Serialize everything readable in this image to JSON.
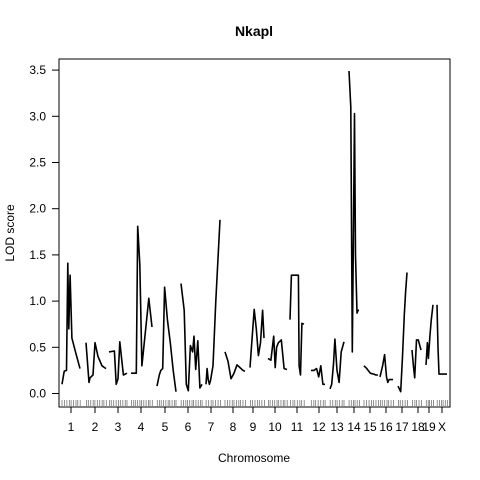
{
  "chart_data": {
    "type": "line",
    "title": "Nkapl",
    "xlabel": "Chromosome",
    "ylabel": "LOD score",
    "ylim": [
      0,
      3.5
    ],
    "yticks": [
      0.0,
      0.5,
      1.0,
      1.5,
      2.0,
      2.5,
      3.0,
      3.5
    ],
    "ytick_labels": [
      "0.0",
      "0.5",
      "1.0",
      "1.5",
      "2.0",
      "2.5",
      "3.0",
      "3.5"
    ],
    "chromosomes": [
      {
        "label": "1",
        "show_label": true,
        "x": [
          0.0,
          0.12,
          0.25,
          0.32,
          0.38,
          0.45,
          0.55,
          0.75,
          1.0
        ],
        "y": [
          0.1,
          0.24,
          0.25,
          1.41,
          0.7,
          1.28,
          0.6,
          0.45,
          0.27
        ]
      },
      {
        "label": "2",
        "show_label": true,
        "x": [
          0.0,
          0.15,
          0.2,
          0.35,
          0.45,
          0.6,
          0.8,
          1.0
        ],
        "y": [
          0.55,
          0.12,
          0.17,
          0.2,
          0.55,
          0.4,
          0.3,
          0.27
        ]
      },
      {
        "label": "3",
        "show_label": true,
        "x": [
          0.0,
          0.3,
          0.4,
          0.5,
          0.6,
          0.7,
          0.8,
          1.0
        ],
        "y": [
          0.45,
          0.46,
          0.1,
          0.16,
          0.56,
          0.38,
          0.2,
          0.22
        ]
      },
      {
        "label": "4",
        "show_label": true,
        "x": [
          0.0,
          0.25,
          0.32,
          0.42,
          0.52,
          0.7,
          0.85,
          1.0
        ],
        "y": [
          0.22,
          0.22,
          1.81,
          1.4,
          0.3,
          0.7,
          1.03,
          0.72
        ]
      },
      {
        "label": "5",
        "show_label": true,
        "x": [
          0.0,
          0.12,
          0.2,
          0.3,
          0.4,
          0.55,
          0.7,
          0.85,
          1.0
        ],
        "y": [
          0.08,
          0.2,
          0.25,
          0.27,
          1.15,
          0.8,
          0.55,
          0.25,
          0.02
        ]
      },
      {
        "label": "6",
        "show_label": true,
        "x": [
          0.0,
          0.15,
          0.25,
          0.35,
          0.45,
          0.55,
          0.62,
          0.7,
          0.8,
          0.9,
          1.0
        ],
        "y": [
          1.19,
          0.9,
          0.1,
          0.03,
          0.52,
          0.45,
          0.62,
          0.26,
          0.57,
          0.06,
          0.1
        ]
      },
      {
        "label": "7",
        "show_label": true,
        "x": [
          0.0,
          0.08,
          0.16,
          0.24,
          0.32,
          0.5,
          0.7,
          1.0
        ],
        "y": [
          0.1,
          0.27,
          0.15,
          0.1,
          0.14,
          0.3,
          1.0,
          1.88
        ]
      },
      {
        "label": "8",
        "show_label": true,
        "x": [
          0.0,
          0.15,
          0.3,
          0.45,
          0.6,
          0.75,
          0.9,
          1.0
        ],
        "y": [
          0.45,
          0.35,
          0.16,
          0.22,
          0.31,
          0.28,
          0.25,
          0.24
        ]
      },
      {
        "label": "9",
        "show_label": true,
        "x": [
          0.0,
          0.15,
          0.3,
          0.45,
          0.6,
          0.75,
          0.9,
          1.0
        ],
        "y": [
          0.28,
          0.6,
          0.91,
          0.7,
          0.41,
          0.55,
          0.9,
          0.6
        ]
      },
      {
        "label": "10",
        "show_label": true,
        "x": [
          0.0,
          0.15,
          0.3,
          0.38,
          0.45,
          0.55,
          0.7,
          0.85,
          1.0
        ],
        "y": [
          0.38,
          0.36,
          0.62,
          0.28,
          0.5,
          0.55,
          0.58,
          0.27,
          0.26
        ]
      },
      {
        "label": "11",
        "show_label": true,
        "x": [
          0.0,
          0.1,
          0.2,
          0.4,
          0.6,
          0.65,
          0.75,
          0.85,
          1.0
        ],
        "y": [
          0.8,
          1.28,
          1.28,
          1.28,
          1.28,
          0.3,
          0.2,
          0.76,
          0.75
        ]
      },
      {
        "label": "12",
        "show_label": true,
        "x": [
          0.0,
          0.2,
          0.4,
          0.55,
          0.7,
          0.85,
          1.0
        ],
        "y": [
          0.25,
          0.25,
          0.27,
          0.18,
          0.3,
          0.1,
          0.1
        ]
      },
      {
        "label": "13",
        "show_label": true,
        "x": [
          0.0,
          0.12,
          0.25,
          0.35,
          0.5,
          0.65,
          0.8,
          1.0
        ],
        "y": [
          0.05,
          0.1,
          0.32,
          0.59,
          0.25,
          0.12,
          0.45,
          0.56
        ]
      },
      {
        "label": "14",
        "show_label": true,
        "x": [
          0.0,
          0.18,
          0.33,
          0.45,
          0.55,
          0.65,
          0.8,
          0.9,
          1.0
        ],
        "y": [
          3.49,
          3.1,
          0.45,
          1.8,
          3.03,
          1.5,
          0.87,
          0.9,
          0.9
        ]
      },
      {
        "label": "15",
        "show_label": true,
        "x": [
          0.0,
          0.2,
          0.45,
          0.7,
          0.85,
          1.0
        ],
        "y": [
          0.3,
          0.27,
          0.22,
          0.21,
          0.2,
          0.2
        ]
      },
      {
        "label": "16",
        "show_label": true,
        "x": [
          0.0,
          0.2,
          0.35,
          0.5,
          0.6,
          0.7,
          0.85,
          1.0
        ],
        "y": [
          0.18,
          0.3,
          0.42,
          0.18,
          0.12,
          0.15,
          0.15,
          0.15
        ]
      },
      {
        "label": "17",
        "show_label": true,
        "x": [
          0.0,
          0.15,
          0.3,
          0.5,
          0.7,
          0.85,
          1.0
        ],
        "y": [
          0.08,
          0.05,
          0.02,
          0.4,
          0.85,
          1.1,
          1.31
        ]
      },
      {
        "label": "18",
        "show_label": true,
        "x": [
          0.0,
          0.15,
          0.3,
          0.5,
          0.7,
          1.0
        ],
        "y": [
          0.47,
          0.3,
          0.17,
          0.58,
          0.58,
          0.47
        ]
      },
      {
        "label": "19",
        "show_label": true,
        "x": [
          0.0,
          0.2,
          0.35,
          0.55,
          0.75,
          1.0
        ],
        "y": [
          0.31,
          0.55,
          0.38,
          0.62,
          0.8,
          0.96
        ]
      },
      {
        "label": "X",
        "show_label": true,
        "x": [
          0.0,
          0.1,
          0.2,
          0.35,
          0.6,
          1.0
        ],
        "y": [
          0.96,
          0.5,
          0.21,
          0.21,
          0.21,
          0.21
        ]
      }
    ],
    "grid": false,
    "legend": "none",
    "line_color": "#000000"
  }
}
